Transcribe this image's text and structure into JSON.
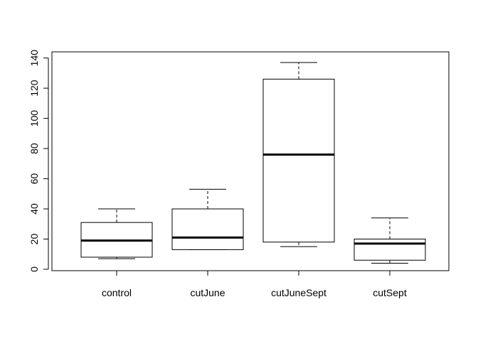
{
  "chart_data": {
    "type": "boxplot",
    "title": "",
    "xlabel": "",
    "ylabel": "",
    "categories": [
      "control",
      "cutJune",
      "cutJuneSept",
      "cutSept"
    ],
    "boxes": [
      {
        "category": "control",
        "min": 7,
        "q1": 8,
        "median": 19,
        "q3": 31,
        "max": 40
      },
      {
        "category": "cutJune",
        "min": 13,
        "q1": 13,
        "median": 21,
        "q3": 40,
        "max": 53
      },
      {
        "category": "cutJuneSept",
        "min": 15,
        "q1": 18,
        "median": 76,
        "q3": 126,
        "max": 137
      },
      {
        "category": "cutSept",
        "min": 4,
        "q1": 6,
        "median": 17,
        "q3": 20,
        "max": 34
      }
    ],
    "ylim": [
      0,
      140
    ],
    "yticks": [
      0,
      20,
      40,
      60,
      80,
      100,
      120,
      140
    ],
    "ytick_labels": [
      "0",
      "20",
      "40",
      "60",
      "80",
      "100",
      "120",
      "140"
    ],
    "grid": false,
    "legend": "none",
    "colors": {
      "stroke": "#000000",
      "box_fill": "#ffffff",
      "background": "#ffffff"
    }
  }
}
